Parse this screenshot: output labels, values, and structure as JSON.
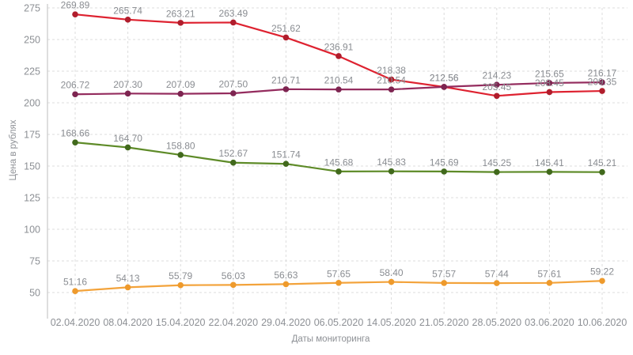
{
  "chart_data": {
    "type": "line",
    "title": "",
    "xlabel": "Даты мониторинга",
    "ylabel": "Цена в рублях",
    "categories": [
      "02.04.2020",
      "08.04.2020",
      "15.04.2020",
      "22.04.2020",
      "29.04.2020",
      "06.05.2020",
      "14.05.2020",
      "21.05.2020",
      "28.05.2020",
      "03.06.2020",
      "10.06.2020"
    ],
    "yticks": [
      50,
      75,
      100,
      125,
      150,
      175,
      200,
      225,
      250,
      275
    ],
    "ylim": [
      50,
      275
    ],
    "grid": "dashed",
    "legend": "none",
    "point_labels": "shown",
    "series": [
      {
        "name": "series-red",
        "color": "#de2230",
        "point_color": "#b01d2c",
        "values": [
          269.89,
          265.74,
          263.21,
          263.49,
          251.62,
          236.91,
          218.38,
          212.56,
          205.45,
          208.45,
          209.35
        ]
      },
      {
        "name": "series-purple",
        "color": "#942c5e",
        "point_color": "#7d2450",
        "values": [
          206.72,
          207.3,
          207.09,
          207.5,
          210.71,
          210.54,
          210.54,
          212.56,
          214.23,
          215.65,
          216.17
        ]
      },
      {
        "name": "series-green",
        "color": "#5e8b28",
        "point_color": "#41691c",
        "values": [
          168.66,
          164.7,
          158.8,
          152.67,
          151.74,
          145.68,
          145.83,
          145.69,
          145.25,
          145.41,
          145.21
        ]
      },
      {
        "name": "series-orange",
        "color": "#f3a33b",
        "point_color": "#ee9a2c",
        "values": [
          51.16,
          54.13,
          55.79,
          56.03,
          56.63,
          57.65,
          58.4,
          57.57,
          57.44,
          57.61,
          59.22
        ]
      }
    ],
    "styles": {
      "grid_color": "#dcdcdc",
      "axis_color": "#c9c9c9",
      "tick_text_color": "#8d9095",
      "data_label_color": "#8a8d92",
      "background": "#ffffff"
    }
  }
}
